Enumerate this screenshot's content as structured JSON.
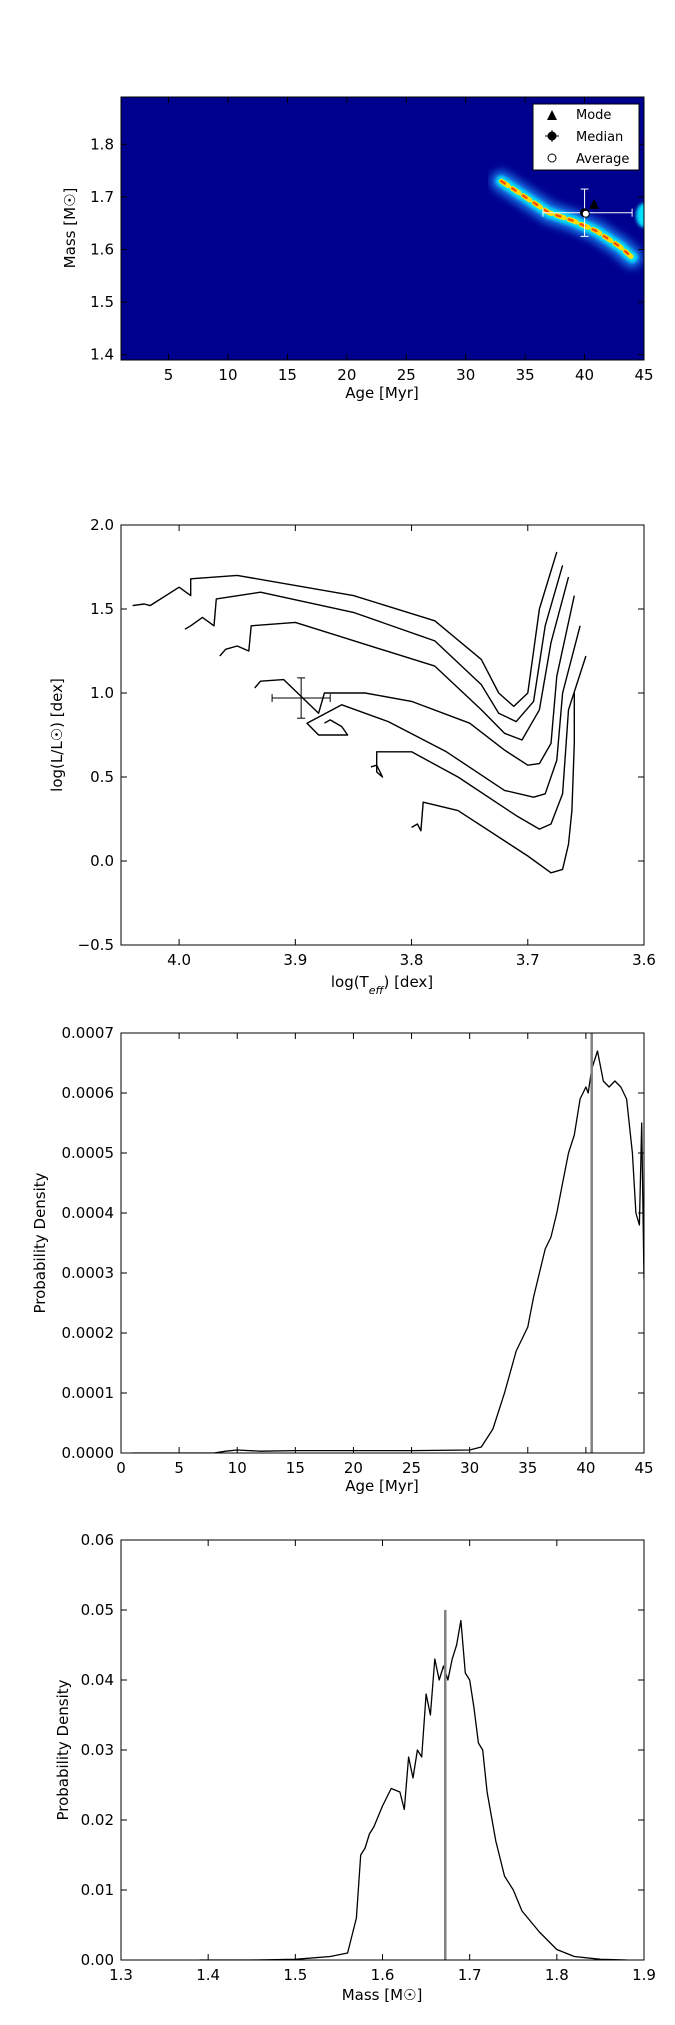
{
  "chart_data": [
    {
      "type": "heatmap",
      "xlabel": "Age [Myr]",
      "ylabel": "Mass [M☉]",
      "xlim": [
        1,
        45
      ],
      "ylim": [
        1.39,
        1.89
      ],
      "xticks": [
        5,
        10,
        15,
        20,
        25,
        30,
        35,
        40,
        45
      ],
      "yticks": [
        1.4,
        1.5,
        1.6,
        1.7,
        1.8
      ],
      "ridge": {
        "x": [
          33.0,
          35.0,
          37.0,
          39.0,
          41.0,
          43.0,
          44.0
        ],
        "y": [
          1.73,
          1.7,
          1.67,
          1.655,
          1.635,
          1.605,
          1.585
        ]
      },
      "markers": {
        "mode": {
          "x": 40.8,
          "y": 1.685
        },
        "median": {
          "x": 40.0,
          "y": 1.67,
          "x_err": [
            36.5,
            44.0
          ],
          "y_err": [
            1.625,
            1.715
          ]
        },
        "average": {
          "x": 40.1,
          "y": 1.668
        }
      },
      "legend": [
        "Mode",
        "Median",
        "Average"
      ],
      "legend_loc": "upper right",
      "colors": {
        "bg": "#00008f",
        "ridge_outer": "#1e90ff",
        "ridge_mid": "#00e0ff",
        "ridge_core": "#ffdd00",
        "ridge_hot": "#ff5000"
      }
    },
    {
      "type": "line",
      "xlabel": "log(T_eff) [dex]",
      "ylabel": "log(L/L☉) [dex]",
      "xlim": [
        4.05,
        3.6
      ],
      "ylim": [
        -0.5,
        2.0
      ],
      "xticks": [
        4.0,
        3.9,
        3.8,
        3.7,
        3.6
      ],
      "yticks": [
        2.0,
        1.5,
        1.0,
        0.5,
        0.0,
        -0.5
      ],
      "series": [
        {
          "x": [
            4.04,
            4.03,
            4.025,
            4.0,
            3.99,
            3.99,
            3.95,
            3.85,
            3.78,
            3.74,
            3.725,
            3.712,
            3.7,
            3.69,
            3.675
          ],
          "y": [
            1.52,
            1.53,
            1.52,
            1.63,
            1.58,
            1.68,
            1.7,
            1.58,
            1.43,
            1.2,
            1.0,
            0.92,
            1.0,
            1.5,
            1.84
          ]
        },
        {
          "x": [
            3.995,
            3.99,
            3.98,
            3.97,
            3.968,
            3.93,
            3.85,
            3.78,
            3.74,
            3.725,
            3.71,
            3.695,
            3.685,
            3.67
          ],
          "y": [
            1.38,
            1.4,
            1.45,
            1.4,
            1.56,
            1.6,
            1.48,
            1.31,
            1.05,
            0.88,
            0.83,
            0.95,
            1.4,
            1.76
          ]
        },
        {
          "x": [
            3.965,
            3.96,
            3.95,
            3.94,
            3.938,
            3.9,
            3.84,
            3.78,
            3.74,
            3.72,
            3.705,
            3.69,
            3.68,
            3.665
          ],
          "y": [
            1.22,
            1.26,
            1.28,
            1.25,
            1.4,
            1.42,
            1.29,
            1.16,
            0.9,
            0.76,
            0.72,
            0.9,
            1.3,
            1.69
          ]
        },
        {
          "x": [
            3.935,
            3.93,
            3.91,
            3.88,
            3.875,
            3.84,
            3.8,
            3.75,
            3.72,
            3.7,
            3.69,
            3.68,
            3.675,
            3.66
          ],
          "y": [
            1.03,
            1.07,
            1.08,
            0.88,
            1.0,
            1.0,
            0.95,
            0.82,
            0.66,
            0.57,
            0.58,
            0.7,
            1.1,
            1.58
          ]
        },
        {
          "x": [
            3.875,
            3.87,
            3.86,
            3.855,
            3.88,
            3.89,
            3.86,
            3.82,
            3.77,
            3.72,
            3.695,
            3.685,
            3.675,
            3.67,
            3.655
          ],
          "y": [
            0.82,
            0.84,
            0.8,
            0.75,
            0.75,
            0.82,
            0.93,
            0.83,
            0.65,
            0.42,
            0.38,
            0.4,
            0.6,
            1.0,
            1.4
          ]
        },
        {
          "x": [
            3.835,
            3.83,
            3.825,
            3.83,
            3.83,
            3.8,
            3.76,
            3.71,
            3.69,
            3.68,
            3.67,
            3.665,
            3.65
          ],
          "y": [
            0.56,
            0.57,
            0.5,
            0.53,
            0.65,
            0.65,
            0.5,
            0.27,
            0.19,
            0.22,
            0.4,
            0.9,
            1.22
          ]
        },
        {
          "x": [
            3.8,
            3.795,
            3.792,
            3.79,
            3.76,
            3.7,
            3.68,
            3.67,
            3.665,
            3.662,
            3.66,
            3.66
          ],
          "y": [
            0.2,
            0.22,
            0.18,
            0.35,
            0.3,
            0.03,
            -0.07,
            -0.05,
            0.1,
            0.3,
            0.7,
            1.0
          ]
        }
      ],
      "point": {
        "x": 3.895,
        "y": 0.97,
        "x_err": [
          3.87,
          3.92
        ],
        "y_err": [
          0.85,
          1.09
        ]
      }
    },
    {
      "type": "line",
      "xlabel": "Age [Myr]",
      "ylabel": "Probability Density",
      "xlim": [
        0,
        45
      ],
      "ylim": [
        0.0,
        0.0007
      ],
      "xticks": [
        0,
        5,
        10,
        15,
        20,
        25,
        30,
        35,
        40,
        45
      ],
      "yticks": [
        "0.0000",
        "0.0001",
        "0.0002",
        "0.0003",
        "0.0004",
        "0.0005",
        "0.0006",
        "0.0007"
      ],
      "x": [
        1,
        5,
        8,
        9,
        10,
        12,
        15,
        20,
        25,
        30,
        31,
        32,
        33,
        34,
        35,
        35.5,
        36,
        36.5,
        37,
        37.5,
        38,
        38.5,
        39,
        39.5,
        40,
        40.2,
        40.5,
        41,
        41.5,
        42,
        42.5,
        43,
        43.5,
        44,
        44.3,
        44.6,
        44.8,
        45
      ],
      "y": [
        0.0,
        0.0,
        0.0,
        3e-06,
        5e-06,
        3e-06,
        4e-06,
        4e-06,
        4e-06,
        5e-06,
        1e-05,
        4e-05,
        0.0001,
        0.00017,
        0.00021,
        0.00026,
        0.0003,
        0.00034,
        0.00036,
        0.0004,
        0.00045,
        0.0005,
        0.00053,
        0.00059,
        0.00061,
        0.0006,
        0.00064,
        0.00067,
        0.00062,
        0.00061,
        0.00062,
        0.00061,
        0.00059,
        0.0005,
        0.0004,
        0.00038,
        0.00055,
        0.00029
      ],
      "vline": 40.5,
      "colors": {
        "vline": "#808080"
      }
    },
    {
      "type": "line",
      "xlabel": "Mass [M☉]",
      "ylabel": "Probability Density",
      "xlim": [
        1.3,
        1.9
      ],
      "ylim": [
        0.0,
        0.06
      ],
      "xticks": [
        "1.3",
        "1.4",
        "1.5",
        "1.6",
        "1.7",
        "1.8",
        "1.9"
      ],
      "yticks": [
        "0.06",
        "0.05",
        "0.04",
        "0.03",
        "0.02",
        "0.01",
        "0.00"
      ],
      "x": [
        1.39,
        1.45,
        1.5,
        1.54,
        1.56,
        1.57,
        1.575,
        1.58,
        1.585,
        1.59,
        1.6,
        1.61,
        1.62,
        1.625,
        1.63,
        1.635,
        1.64,
        1.645,
        1.65,
        1.655,
        1.66,
        1.665,
        1.67,
        1.675,
        1.68,
        1.685,
        1.69,
        1.695,
        1.7,
        1.705,
        1.71,
        1.715,
        1.72,
        1.73,
        1.74,
        1.75,
        1.76,
        1.78,
        1.8,
        1.82,
        1.85,
        1.88
      ],
      "y": [
        0.0,
        0.0,
        0.0001,
        0.0005,
        0.001,
        0.006,
        0.015,
        0.016,
        0.018,
        0.019,
        0.022,
        0.0245,
        0.024,
        0.0215,
        0.029,
        0.026,
        0.03,
        0.029,
        0.038,
        0.035,
        0.043,
        0.04,
        0.042,
        0.04,
        0.043,
        0.045,
        0.0485,
        0.041,
        0.04,
        0.036,
        0.031,
        0.03,
        0.024,
        0.017,
        0.012,
        0.01,
        0.007,
        0.004,
        0.0015,
        0.0005,
        0.0001,
        0.0
      ],
      "vline": 1.672,
      "colors": {
        "vline": "#808080"
      }
    }
  ]
}
